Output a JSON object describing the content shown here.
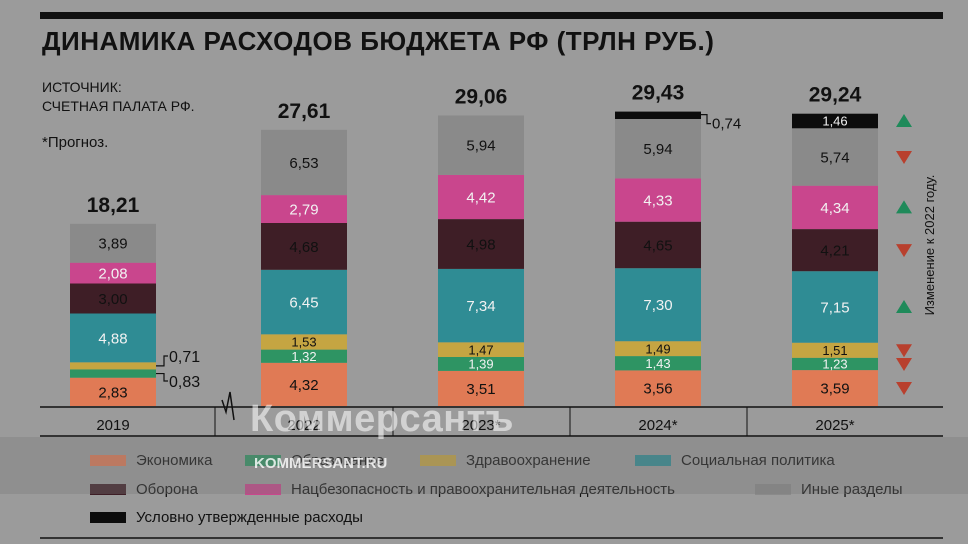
{
  "title": "ДИНАМИКА РАСХОДОВ БЮДЖЕТА РФ (ТРЛН РУБ.)",
  "source": {
    "line1": "ИСТОЧНИК:",
    "line2": "СЧЕТНАЯ ПАЛАТА РФ."
  },
  "note": "*Прогноз.",
  "side_label": "Изменение к 2022 году.",
  "watermark": {
    "brand": "Коммерсантъ",
    "site": "KOMMERSANT.RU"
  },
  "colors": {
    "Экономика": "#e07a55",
    "Образование": "#2e9463",
    "Здравоохранение": "#c5a542",
    "Социальная политика": "#2f8c94",
    "Оборона": "#3e1e26",
    "Нацбезопасность и правоохранительная деятельность": "#c9468d",
    "Иные разделы": "#8a8a8a",
    "Условно утвержденные расходы": "#0c0c0c",
    "up": "#1f8a5a",
    "down": "#b8402e"
  },
  "chart_data": {
    "type": "bar",
    "stacked": true,
    "title": "ДИНАМИКА РАСХОДОВ БЮДЖЕТА РФ (ТРЛН РУБ.)",
    "categories": [
      "2019",
      "2022",
      "2023*",
      "2024*",
      "2025*"
    ],
    "totals": [
      "18,21",
      "27,61",
      "29,06",
      "29,43",
      "29,24"
    ],
    "series": [
      {
        "name": "Экономика",
        "values": [
          2.83,
          4.32,
          3.51,
          3.56,
          3.59
        ],
        "labels": [
          "2,83",
          "4,32",
          "3,51",
          "3,56",
          "3,59"
        ]
      },
      {
        "name": "Образование",
        "values": [
          0.83,
          1.32,
          1.39,
          1.43,
          1.23
        ],
        "labels": [
          "0,83",
          "1,32",
          "1,39",
          "1,43",
          "1,23"
        ]
      },
      {
        "name": "Здравоохранение",
        "values": [
          0.71,
          1.53,
          1.47,
          1.49,
          1.51
        ],
        "labels": [
          "0,71",
          "1,53",
          "1,47",
          "1,49",
          "1,51"
        ]
      },
      {
        "name": "Социальная политика",
        "values": [
          4.88,
          6.45,
          7.34,
          7.3,
          7.15
        ],
        "labels": [
          "4,88",
          "6,45",
          "7,34",
          "7,30",
          "7,15"
        ]
      },
      {
        "name": "Оборона",
        "values": [
          3.0,
          4.68,
          4.98,
          4.65,
          4.21
        ],
        "labels": [
          "3,00",
          "4,68",
          "4,98",
          "4,65",
          "4,21"
        ]
      },
      {
        "name": "Нацбезопасность и правоохранительная деятельность",
        "values": [
          2.08,
          2.79,
          4.42,
          4.33,
          4.34
        ],
        "labels": [
          "2,08",
          "2,79",
          "4,42",
          "4,33",
          "4,34"
        ]
      },
      {
        "name": "Иные разделы",
        "values": [
          3.89,
          6.53,
          5.94,
          5.94,
          5.74
        ],
        "labels": [
          "3,89",
          "6,53",
          "5,94",
          "5,94",
          "5,74"
        ]
      },
      {
        "name": "Условно утвержденные расходы",
        "values": [
          0,
          0,
          0,
          0.74,
          1.46
        ],
        "labels": [
          "",
          "",
          "",
          "0,74",
          "1,46"
        ]
      }
    ],
    "change_vs_2022": [
      {
        "series": "Условно утвержденные расходы",
        "direction": "up"
      },
      {
        "series": "Иные разделы",
        "direction": "down"
      },
      {
        "series": "Нацбезопасность и правоохранительная деятельность",
        "direction": "up"
      },
      {
        "series": "Оборона",
        "direction": "down"
      },
      {
        "series": "Социальная политика",
        "direction": "up"
      },
      {
        "series": "Здравоохранение",
        "direction": "down"
      },
      {
        "series": "Образование",
        "direction": "down"
      },
      {
        "series": "Экономика",
        "direction": "down"
      }
    ],
    "axis_break_between": [
      "2019",
      "2022"
    ],
    "legend": [
      "Экономика",
      "Образование",
      "Здравоохранение",
      "Социальная политика",
      "Оборона",
      "Нацбезопасность и правоохранительная деятельность",
      "Иные разделы",
      "Условно утвержденные расходы"
    ],
    "legend_position": "bottom"
  }
}
